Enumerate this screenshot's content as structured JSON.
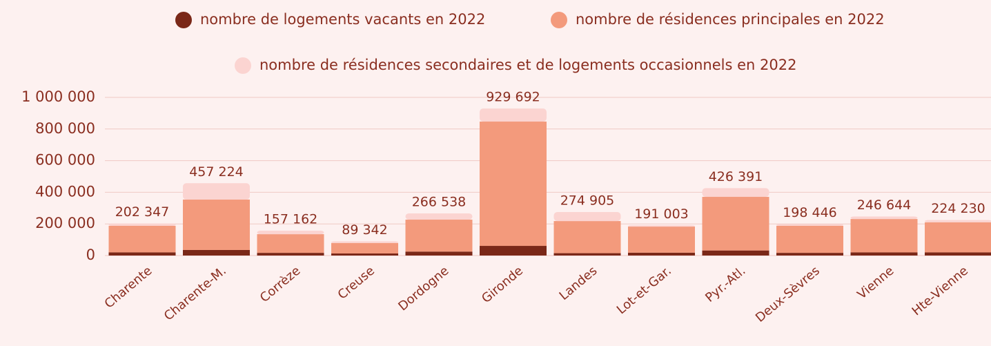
{
  "chart_data": {
    "type": "stacked_bar",
    "categories": [
      "Charente",
      "Charente-M.",
      "Corrèze",
      "Creuse",
      "Dordogne",
      "Gironde",
      "Landes",
      "Lot-et-Gar.",
      "Pyr.-Atl.",
      "Deux-Sèvres",
      "Vienne",
      "Hte-Vienne"
    ],
    "series": [
      {
        "name": "nombre de logements vacants en 2022",
        "color": "#7a2818",
        "values": [
          20000,
          35000,
          17000,
          13000,
          25000,
          61000,
          15000,
          18000,
          32000,
          17000,
          20000,
          20000
        ]
      },
      {
        "name": "nombre de résidences principales en 2022",
        "color": "#f39a7c",
        "values": [
          168000,
          319000,
          118000,
          66000,
          202000,
          786000,
          203000,
          165000,
          339000,
          171000,
          211000,
          190000
        ]
      },
      {
        "name": "nombre de résidences secondaires et de logements occasionnels en 2022",
        "color": "#fbd4d1",
        "values": [
          14347,
          103224,
          22162,
          10342,
          39538,
          82692,
          56905,
          8003,
          55391,
          10446,
          15644,
          14230
        ]
      }
    ],
    "totals": [
      202347,
      457224,
      157162,
      89342,
      266538,
      929692,
      274905,
      191003,
      426391,
      198446,
      246644,
      224230
    ],
    "total_labels": [
      "202 347",
      "457 224",
      "157 162",
      "89 342",
      "266 538",
      "929 692",
      "274 905",
      "191 003",
      "426 391",
      "198 446",
      "246 644",
      "224 230"
    ],
    "ylim": [
      0,
      1000000
    ],
    "yticks": [
      0,
      {
        "value": 200000,
        "label": "200 000"
      },
      {
        "value": 400000,
        "label": "400 000"
      },
      {
        "value": 600000,
        "label": "600 000"
      },
      {
        "value": 800000,
        "label": "800 000"
      },
      {
        "value": 1000000,
        "label": "1 000 000"
      }
    ],
    "grid": true
  }
}
